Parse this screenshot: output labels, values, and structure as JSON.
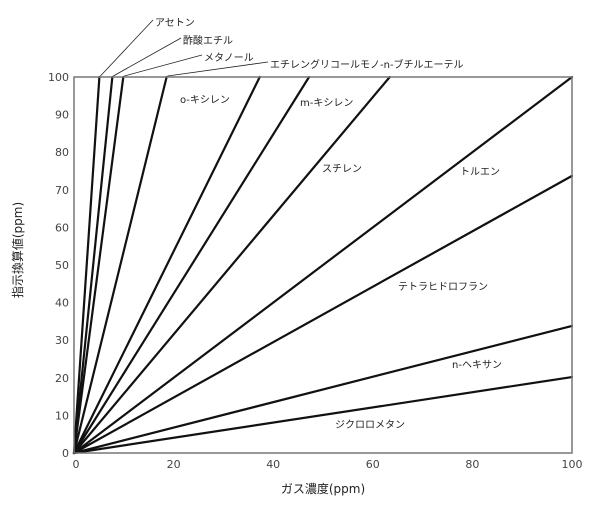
{
  "chart_data": {
    "type": "line",
    "title": "",
    "xlabel": "ガス濃度(ppm)",
    "ylabel": "指示換算値(ppm)",
    "xlim": [
      0,
      100
    ],
    "ylim": [
      0,
      100
    ],
    "xticks": [
      0,
      20,
      40,
      60,
      80,
      100
    ],
    "yticks": [
      0,
      10,
      20,
      30,
      40,
      50,
      60,
      70,
      80,
      90,
      100
    ],
    "grid": false,
    "legend": "none (direct labels)",
    "line_color": "#111111",
    "frame_color": "#777777",
    "series": [
      {
        "name": "アセトン",
        "x": [
          0,
          5.1
        ],
        "y": [
          0,
          100
        ]
      },
      {
        "name": "酢酸エチル",
        "x": [
          0,
          7.7
        ],
        "y": [
          0,
          100
        ]
      },
      {
        "name": "メタノール",
        "x": [
          0,
          9.9
        ],
        "y": [
          0,
          100
        ]
      },
      {
        "name": "エチレングリコールモノ-n-ブチルエーテル",
        "x": [
          0,
          18.6
        ],
        "y": [
          0,
          100
        ]
      },
      {
        "name": "o-キシレン",
        "x": [
          0,
          37.3
        ],
        "y": [
          0,
          100
        ]
      },
      {
        "name": "m-キシレン",
        "x": [
          0,
          47.2
        ],
        "y": [
          0,
          100
        ]
      },
      {
        "name": "スチレン",
        "x": [
          0,
          63.4
        ],
        "y": [
          0,
          100
        ]
      },
      {
        "name": "トルエン",
        "x": [
          0,
          100
        ],
        "y": [
          0,
          100
        ]
      },
      {
        "name": "テトラヒドロフラン",
        "x": [
          0,
          100
        ],
        "y": [
          0,
          73.7
        ]
      },
      {
        "name": "n-ヘキサン",
        "x": [
          0,
          100
        ],
        "y": [
          0,
          33.8
        ]
      },
      {
        "name": "ジクロロメタン",
        "x": [
          0,
          100
        ],
        "y": [
          0,
          20.2
        ]
      }
    ]
  }
}
